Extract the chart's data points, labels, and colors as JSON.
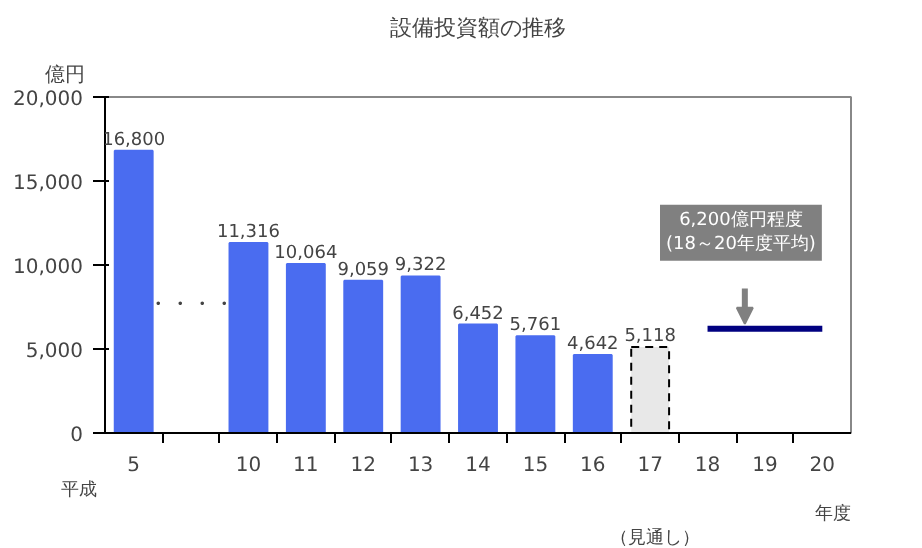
{
  "chart_data": {
    "type": "bar",
    "title": "設備投資額の推移",
    "ylabel": "億円",
    "categories": [
      "5",
      null,
      "10",
      "11",
      "12",
      "13",
      "14",
      "15",
      "16",
      "17",
      "18",
      "19",
      "20"
    ],
    "series": [
      {
        "color": "#4a6cf0",
        "values": [
          16800,
          null,
          11316,
          10064,
          9059,
          9322,
          6452,
          5761,
          4642,
          null,
          null,
          null,
          null
        ],
        "value_labels": [
          "16,800",
          null,
          "11,316",
          "10,064",
          "9,059",
          "9,322",
          "6,452",
          "5,761",
          "4,642",
          null,
          null,
          null,
          null
        ]
      },
      {
        "color": "#e8e8e8",
        "line_style": "dashed",
        "values": [
          null,
          null,
          null,
          null,
          null,
          null,
          null,
          null,
          null,
          5118,
          null,
          null,
          null
        ],
        "value_labels": [
          null,
          null,
          null,
          null,
          null,
          null,
          null,
          null,
          null,
          "5,118",
          null,
          null,
          null
        ]
      },
      {
        "type": "line",
        "color": "#000080",
        "values": [
          null,
          null,
          null,
          null,
          null,
          null,
          null,
          null,
          null,
          null,
          6200,
          6200,
          6200
        ]
      }
    ],
    "ylim": [
      0,
      20000
    ],
    "yticks": [
      {
        "value": 0,
        "label": "0"
      },
      {
        "value": 5000,
        "label": "5,000"
      },
      {
        "value": 10000,
        "label": "10,000"
      },
      {
        "value": 15000,
        "label": "15,000"
      },
      {
        "value": 20000,
        "label": "20,000"
      }
    ],
    "grid": false,
    "annotations": [
      "平成",
      "年度",
      "（見通し）",
      "・・・・",
      "6,200億円程度\n(18～20年度平均)"
    ]
  }
}
